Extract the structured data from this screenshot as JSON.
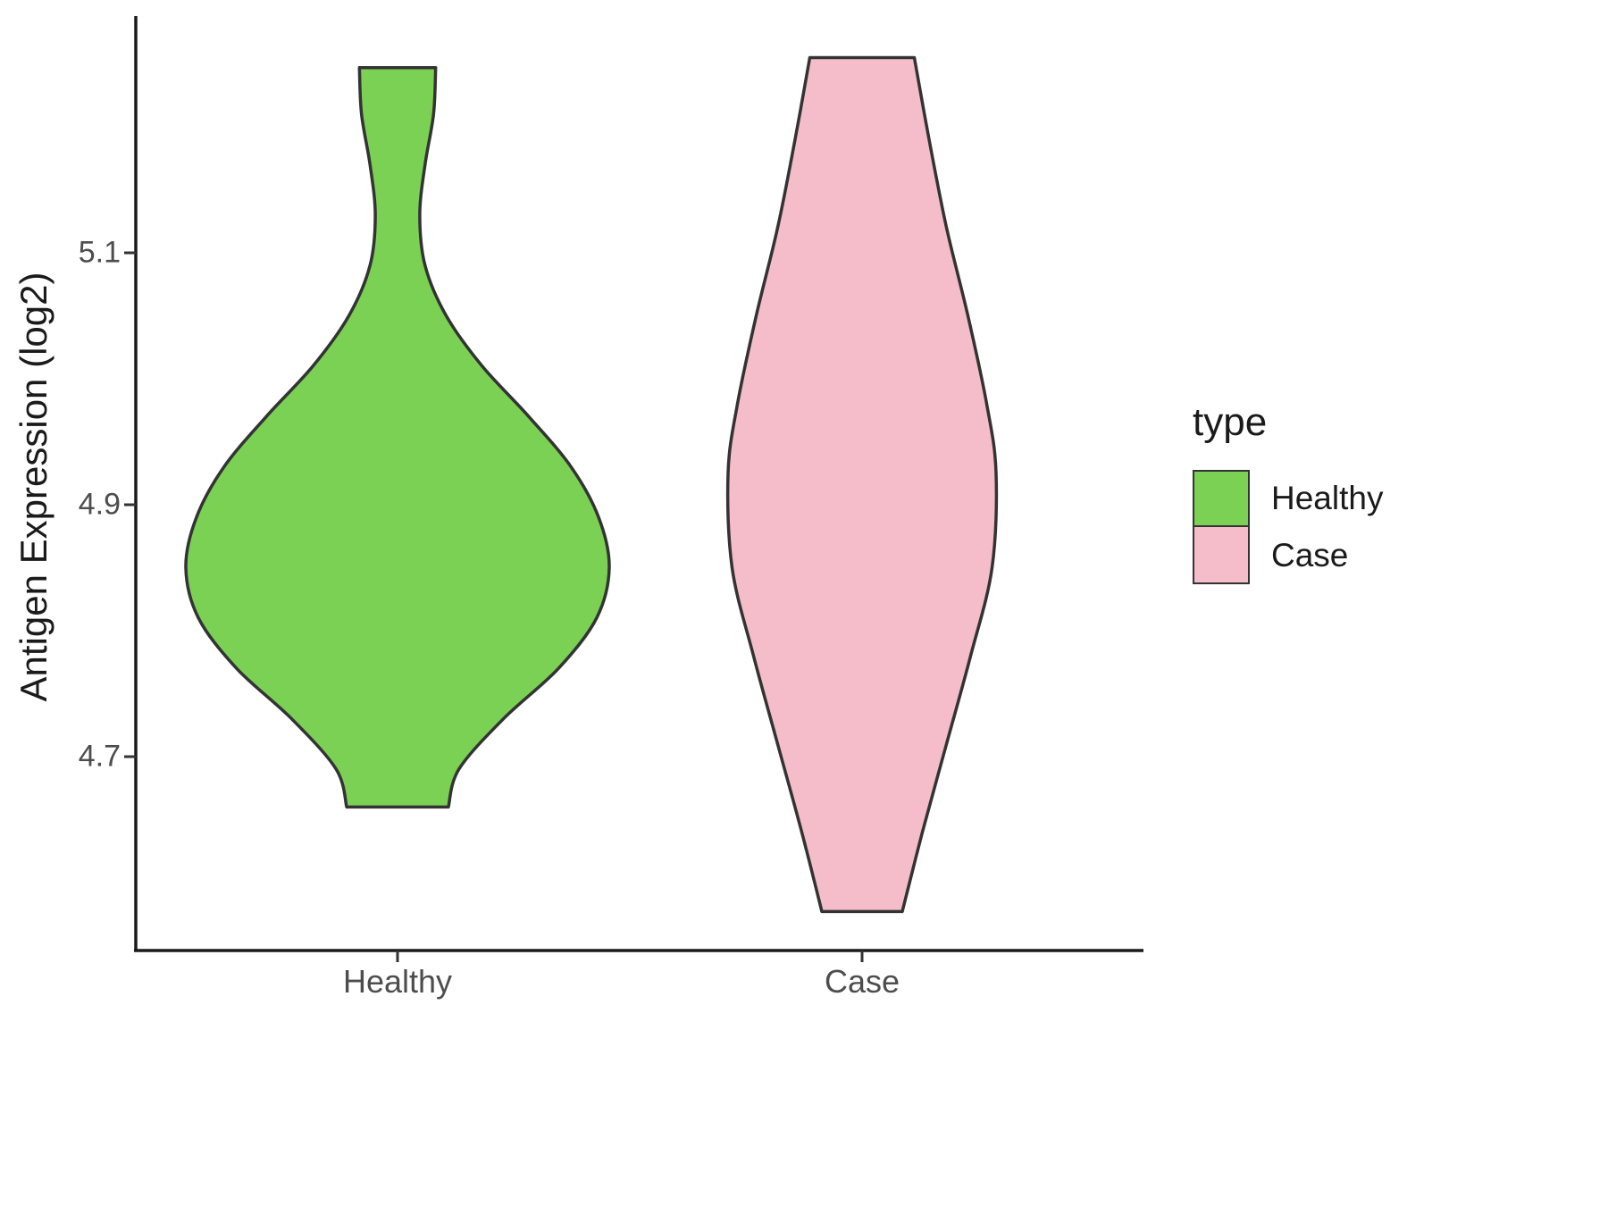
{
  "chart_data": {
    "type": "violin",
    "title": "",
    "xlabel": "",
    "ylabel": "Antigen Expression (log2)",
    "categories": [
      "Healthy",
      "Case"
    ],
    "yticks": [
      4.7,
      4.9,
      5.1
    ],
    "ylim": [
      4.55,
      5.3
    ],
    "grid": false,
    "legend": {
      "title": "type",
      "position": "right",
      "entries": [
        {
          "label": "Healthy",
          "color": "#7bd154"
        },
        {
          "label": "Case",
          "color": "#f5bdc9"
        }
      ]
    },
    "series": [
      {
        "name": "Healthy",
        "color": "#7bd154",
        "outline": "#333333",
        "profile": [
          {
            "y": 5.247,
            "w": 0.18
          },
          {
            "y": 5.21,
            "w": 0.17
          },
          {
            "y": 5.17,
            "w": 0.13
          },
          {
            "y": 5.13,
            "w": 0.105
          },
          {
            "y": 5.09,
            "w": 0.13
          },
          {
            "y": 5.05,
            "w": 0.23
          },
          {
            "y": 5.01,
            "w": 0.4
          },
          {
            "y": 4.97,
            "w": 0.62
          },
          {
            "y": 4.93,
            "w": 0.82
          },
          {
            "y": 4.89,
            "w": 0.95
          },
          {
            "y": 4.85,
            "w": 1.0
          },
          {
            "y": 4.81,
            "w": 0.94
          },
          {
            "y": 4.77,
            "w": 0.76
          },
          {
            "y": 4.73,
            "w": 0.5
          },
          {
            "y": 4.69,
            "w": 0.29
          },
          {
            "y": 4.66,
            "w": 0.24
          }
        ]
      },
      {
        "name": "Case",
        "color": "#f5bdc9",
        "outline": "#333333",
        "profile": [
          {
            "y": 5.255,
            "w": 0.39
          },
          {
            "y": 5.19,
            "w": 0.5
          },
          {
            "y": 5.12,
            "w": 0.63
          },
          {
            "y": 5.05,
            "w": 0.79
          },
          {
            "y": 4.98,
            "w": 0.93
          },
          {
            "y": 4.925,
            "w": 1.0
          },
          {
            "y": 4.85,
            "w": 0.97
          },
          {
            "y": 4.78,
            "w": 0.81
          },
          {
            "y": 4.71,
            "w": 0.63
          },
          {
            "y": 4.64,
            "w": 0.45
          },
          {
            "y": 4.577,
            "w": 0.3
          }
        ]
      }
    ]
  }
}
